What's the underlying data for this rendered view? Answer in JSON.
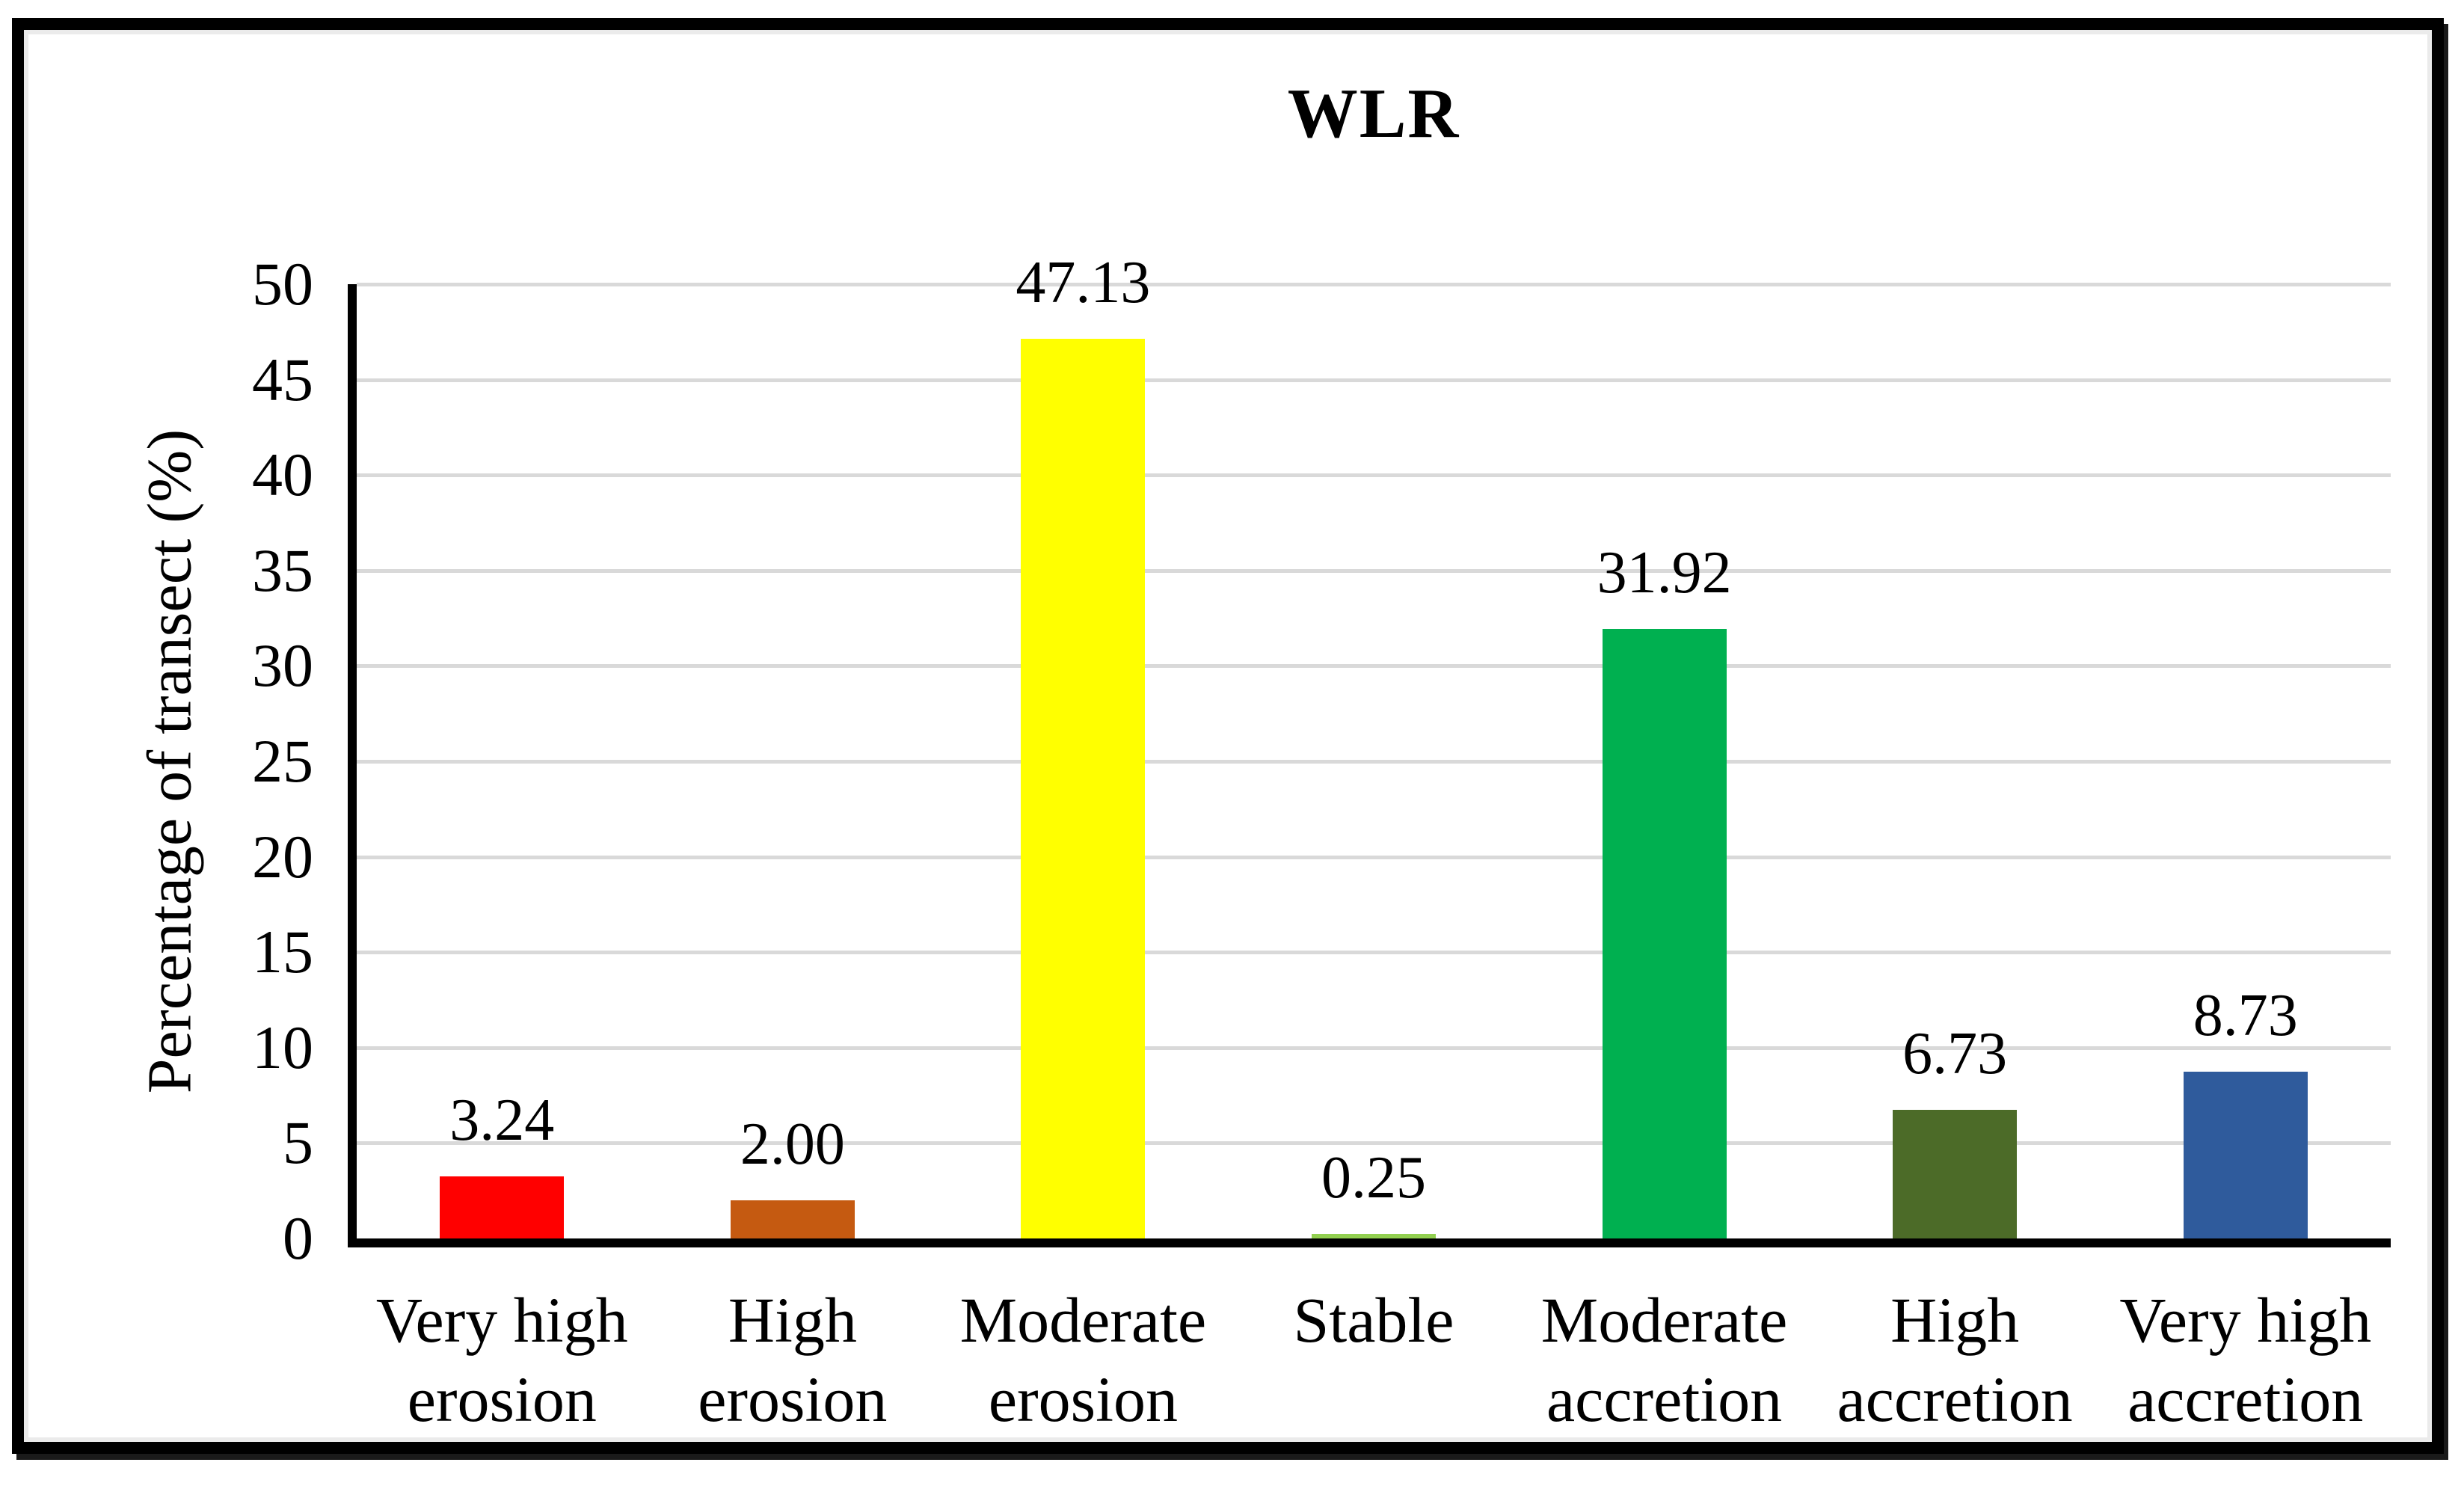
{
  "chart_data": {
    "type": "bar",
    "title": "WLR",
    "xlabel": "",
    "ylabel": "Percentage of transect (%)",
    "ylim": [
      0,
      50
    ],
    "yticks": [
      0,
      5,
      10,
      15,
      20,
      25,
      30,
      35,
      40,
      45,
      50
    ],
    "grid": "horizontal",
    "legend": "none",
    "categories": [
      "Very high erosion",
      "High erosion",
      "Moderate erosion",
      "Stable",
      "Moderate accretion",
      "High accretion",
      "Very high accretion"
    ],
    "category_lines": [
      [
        "Very high",
        "erosion"
      ],
      [
        "High",
        "erosion"
      ],
      [
        "Moderate",
        "erosion"
      ],
      [
        "Stable"
      ],
      [
        "Moderate",
        "accretion"
      ],
      [
        "High",
        "accretion"
      ],
      [
        "Very high",
        "accretion"
      ]
    ],
    "values": [
      3.24,
      2.0,
      47.13,
      0.25,
      31.92,
      6.73,
      8.73
    ],
    "value_labels": [
      "3.24",
      "2.00",
      "47.13",
      "0.25",
      "31.92",
      "6.73",
      "8.73"
    ],
    "bar_colors": [
      "#FF0000",
      "#C55A11",
      "#FFFF00",
      "#92D050",
      "#00B050",
      "#4C6B28",
      "#2F5B9C"
    ],
    "gridline_color": "#D9D9D9",
    "axis_color": "#000000",
    "background_color": "#FFFFFF"
  }
}
